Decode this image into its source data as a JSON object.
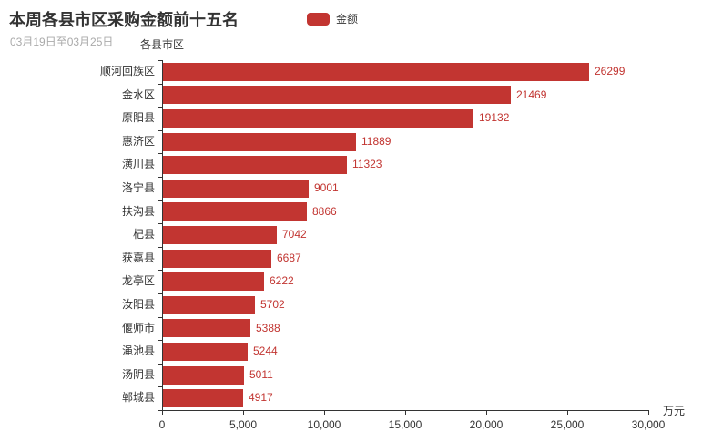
{
  "header": {
    "title": "本周各县市区采购金额前十五名",
    "subtitle": "03月19日至03月25日"
  },
  "legend": {
    "label": "金额",
    "color": "#c23531"
  },
  "axes": {
    "y_name": "各县市区",
    "x_unit": "万元",
    "x_ticks": [
      "0",
      "5,000",
      "10,000",
      "15,000",
      "20,000",
      "25,000",
      "30,000"
    ]
  },
  "chart_data": {
    "type": "bar",
    "orientation": "horizontal",
    "title": "本周各县市区采购金额前十五名",
    "subtitle": "03月19日至03月25日",
    "legend": [
      "金额"
    ],
    "legend_position": "top",
    "categories": [
      "顺河回族区",
      "金水区",
      "原阳县",
      "惠济区",
      "潢川县",
      "洛宁县",
      "扶沟县",
      "杞县",
      "获嘉县",
      "龙亭区",
      "汝阳县",
      "偃师市",
      "渑池县",
      "汤阴县",
      "郸城县"
    ],
    "values": [
      26299,
      21469,
      19132,
      11889,
      11323,
      9001,
      8866,
      7042,
      6687,
      6222,
      5702,
      5388,
      5244,
      5011,
      4917
    ],
    "xlabel": "万元",
    "ylabel": "各县市区",
    "xlim": [
      0,
      30000
    ],
    "grid": false,
    "bar_color": "#c23531",
    "value_label_color": "#c23531",
    "value_labels_shown": true
  }
}
